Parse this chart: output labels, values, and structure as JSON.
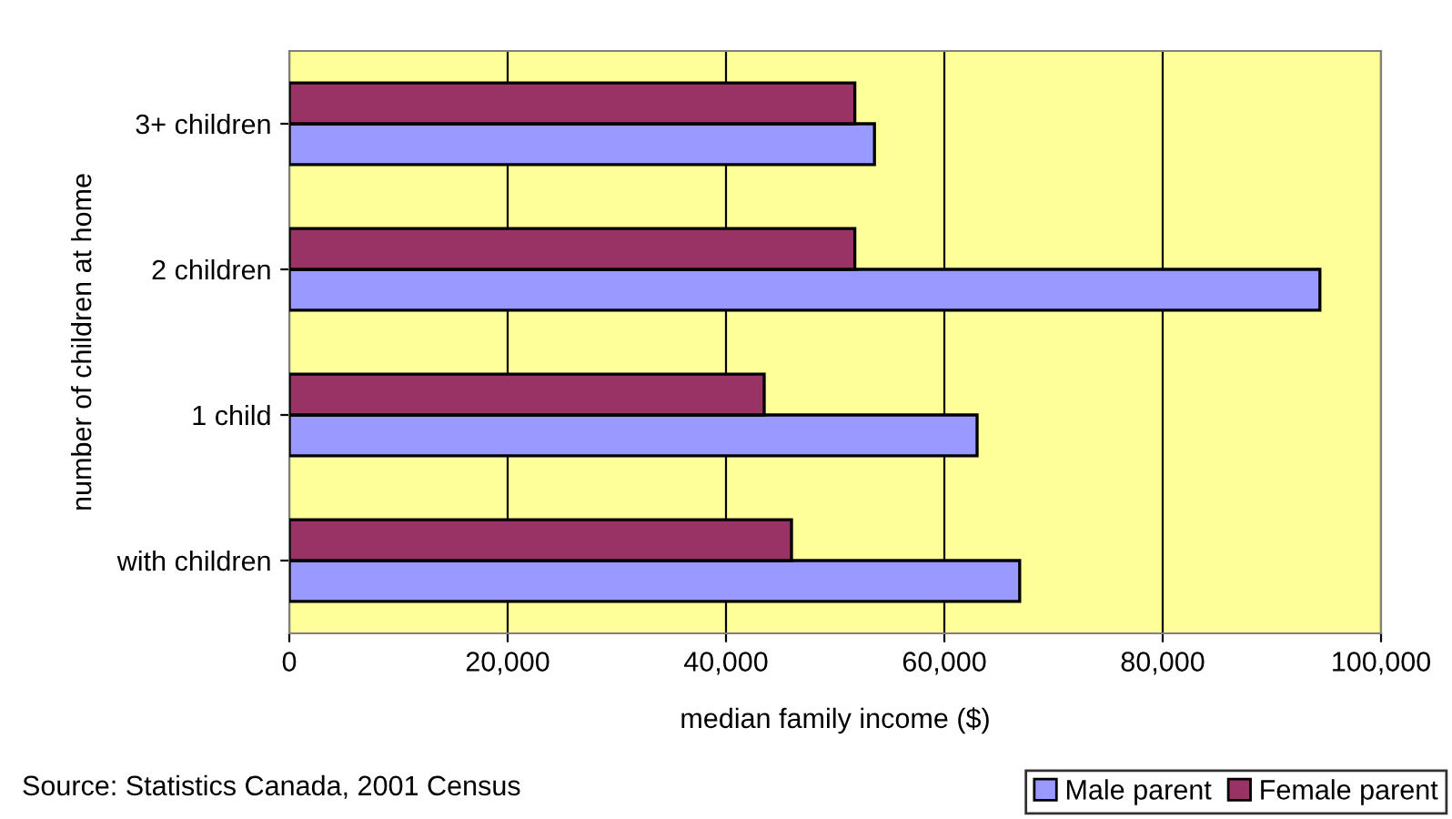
{
  "chart_data": {
    "type": "bar",
    "orientation": "horizontal",
    "xlabel": "median family income ($)",
    "ylabel": "number of children at home",
    "categories": [
      "3+ children",
      "2 children",
      "1 child",
      "with children"
    ],
    "series": [
      {
        "name": "Male parent",
        "color": "#9999ff",
        "values": [
          53600,
          94400,
          63000,
          66900
        ]
      },
      {
        "name": "Female parent",
        "color": "#993366",
        "values": [
          51800,
          51800,
          43500,
          46000
        ]
      }
    ],
    "xlim": [
      0,
      100000
    ],
    "xticks": [
      {
        "value": 0,
        "label": "0"
      },
      {
        "value": 20000,
        "label": "20,000"
      },
      {
        "value": 40000,
        "label": "40,000"
      },
      {
        "value": 60000,
        "label": "60,000"
      },
      {
        "value": 80000,
        "label": "80,000"
      },
      {
        "value": 100000,
        "label": "100,000"
      }
    ],
    "grid": "x",
    "legend": "bottom right",
    "annotations": [
      "Source: Statistics Canada, 2001 Census"
    ]
  }
}
